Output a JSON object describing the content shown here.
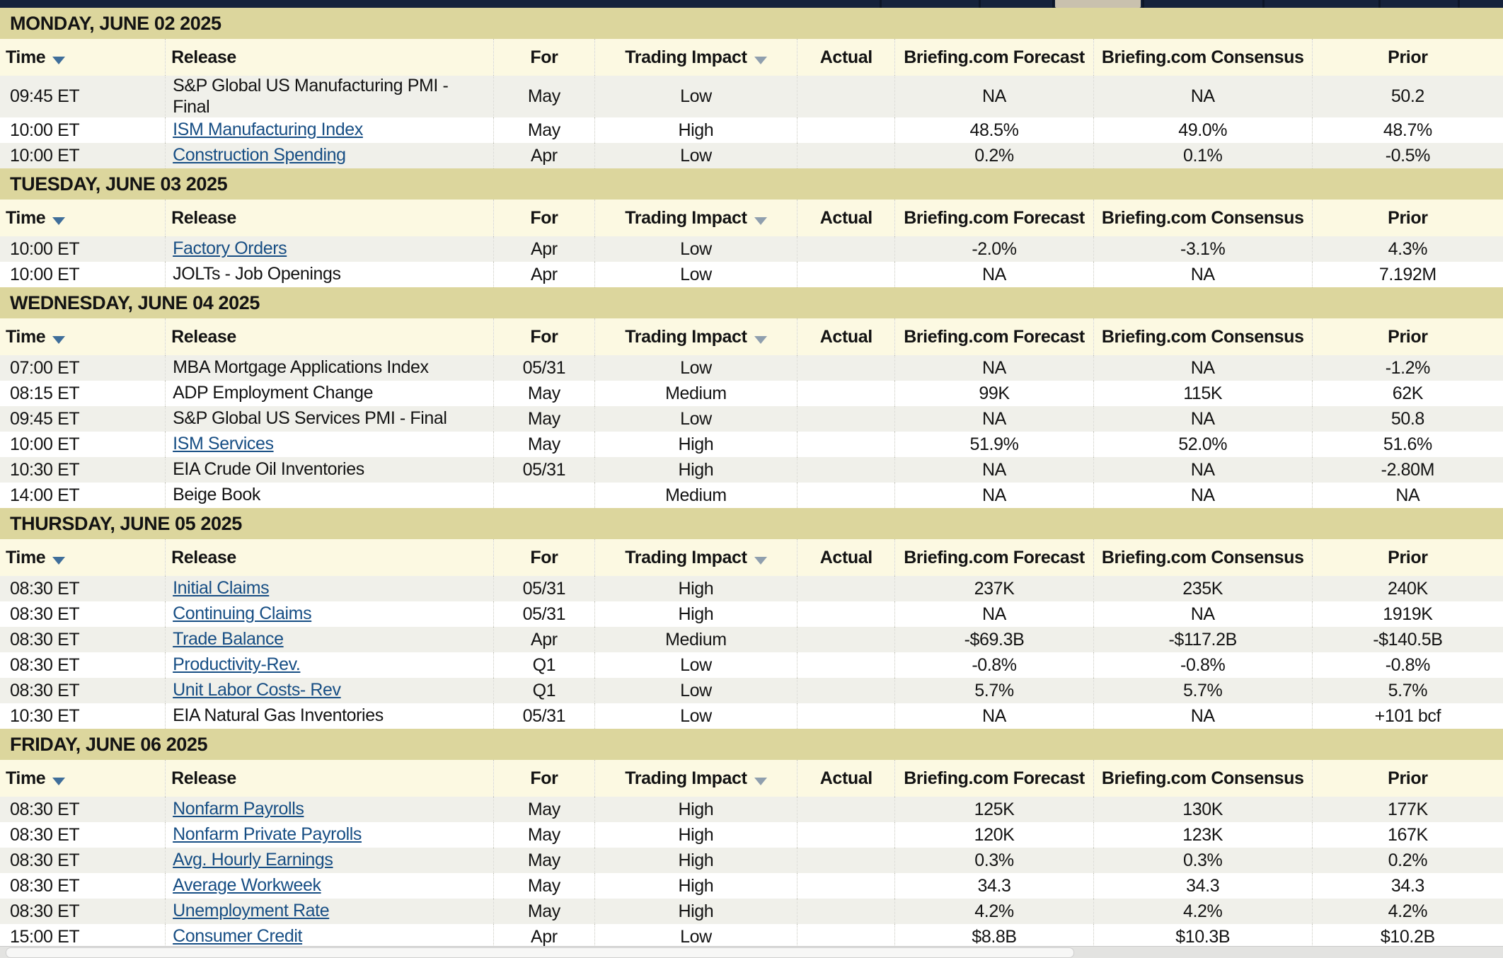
{
  "colors": {
    "topbar_bg": "#15223b",
    "topbar_divider": "#0c1628",
    "topbar_active_tab": "#c9c1ae",
    "day_header_bg": "#dcd69d",
    "column_header_bg": "#fcf9e2",
    "row_alt_bg": "#f0f0ea",
    "row_bg": "#ffffff",
    "text_color": "#131313",
    "link_color": "#174e84",
    "sort_arrow_time": "#3f6e9a",
    "sort_arrow_impact": "#8f9fae",
    "divider_dotted": "#c9c9c0",
    "scrollbar_track": "#e3e3e1",
    "scrollbar_thumb": "#f7f7f6"
  },
  "columns": {
    "time": "Time",
    "release": "Release",
    "for": "For",
    "impact": "Trading Impact",
    "actual": "Actual",
    "forecast": "Briefing.com Forecast",
    "consensus": "Briefing.com Consensus",
    "prior": "Prior"
  },
  "days": [
    {
      "title": "MONDAY, JUNE 02 2025",
      "rows": [
        {
          "time": "09:45 ET",
          "release": "S&P Global US Manufacturing PMI - Final",
          "is_link": false,
          "for": "May",
          "impact": "Low",
          "actual": "",
          "forecast": "NA",
          "consensus": "NA",
          "prior": "50.2"
        },
        {
          "time": "10:00 ET",
          "release": "ISM Manufacturing Index",
          "is_link": true,
          "for": "May",
          "impact": "High",
          "actual": "",
          "forecast": "48.5%",
          "consensus": "49.0%",
          "prior": "48.7%"
        },
        {
          "time": "10:00 ET",
          "release": "Construction Spending",
          "is_link": true,
          "for": "Apr",
          "impact": "Low",
          "actual": "",
          "forecast": "0.2%",
          "consensus": "0.1%",
          "prior": "-0.5%"
        }
      ]
    },
    {
      "title": "TUESDAY, JUNE 03 2025",
      "rows": [
        {
          "time": "10:00 ET",
          "release": "Factory Orders",
          "is_link": true,
          "for": "Apr",
          "impact": "Low",
          "actual": "",
          "forecast": "-2.0%",
          "consensus": "-3.1%",
          "prior": "4.3%"
        },
        {
          "time": "10:00 ET",
          "release": "JOLTs - Job Openings",
          "is_link": false,
          "for": "Apr",
          "impact": "Low",
          "actual": "",
          "forecast": "NA",
          "consensus": "NA",
          "prior": "7.192M"
        }
      ]
    },
    {
      "title": "WEDNESDAY, JUNE 04 2025",
      "rows": [
        {
          "time": "07:00 ET",
          "release": "MBA Mortgage Applications Index",
          "is_link": false,
          "for": "05/31",
          "impact": "Low",
          "actual": "",
          "forecast": "NA",
          "consensus": "NA",
          "prior": "-1.2%"
        },
        {
          "time": "08:15 ET",
          "release": "ADP Employment Change",
          "is_link": false,
          "for": "May",
          "impact": "Medium",
          "actual": "",
          "forecast": "99K",
          "consensus": "115K",
          "prior": "62K"
        },
        {
          "time": "09:45 ET",
          "release": "S&P Global US Services PMI - Final",
          "is_link": false,
          "for": "May",
          "impact": "Low",
          "actual": "",
          "forecast": "NA",
          "consensus": "NA",
          "prior": "50.8"
        },
        {
          "time": "10:00 ET",
          "release": "ISM Services",
          "is_link": true,
          "for": "May",
          "impact": "High",
          "actual": "",
          "forecast": "51.9%",
          "consensus": "52.0%",
          "prior": "51.6%"
        },
        {
          "time": "10:30 ET",
          "release": "EIA Crude Oil Inventories",
          "is_link": false,
          "for": "05/31",
          "impact": "High",
          "actual": "",
          "forecast": "NA",
          "consensus": "NA",
          "prior": "-2.80M"
        },
        {
          "time": "14:00 ET",
          "release": "Beige Book",
          "is_link": false,
          "for": "",
          "impact": "Medium",
          "actual": "",
          "forecast": "NA",
          "consensus": "NA",
          "prior": "NA"
        }
      ]
    },
    {
      "title": "THURSDAY, JUNE 05 2025",
      "rows": [
        {
          "time": "08:30 ET",
          "release": "Initial Claims",
          "is_link": true,
          "for": "05/31",
          "impact": "High",
          "actual": "",
          "forecast": "237K",
          "consensus": "235K",
          "prior": "240K"
        },
        {
          "time": "08:30 ET",
          "release": "Continuing Claims",
          "is_link": true,
          "for": "05/31",
          "impact": "High",
          "actual": "",
          "forecast": "NA",
          "consensus": "NA",
          "prior": "1919K"
        },
        {
          "time": "08:30 ET",
          "release": "Trade Balance",
          "is_link": true,
          "for": "Apr",
          "impact": "Medium",
          "actual": "",
          "forecast": "-$69.3B",
          "consensus": "-$117.2B",
          "prior": "-$140.5B"
        },
        {
          "time": "08:30 ET",
          "release": "Productivity-Rev.",
          "is_link": true,
          "for": "Q1",
          "impact": "Low",
          "actual": "",
          "forecast": "-0.8%",
          "consensus": "-0.8%",
          "prior": "-0.8%"
        },
        {
          "time": "08:30 ET",
          "release": "Unit Labor Costs- Rev",
          "is_link": true,
          "for": "Q1",
          "impact": "Low",
          "actual": "",
          "forecast": "5.7%",
          "consensus": "5.7%",
          "prior": "5.7%"
        },
        {
          "time": "10:30 ET",
          "release": "EIA Natural Gas Inventories",
          "is_link": false,
          "for": "05/31",
          "impact": "Low",
          "actual": "",
          "forecast": "NA",
          "consensus": "NA",
          "prior": "+101 bcf"
        }
      ]
    },
    {
      "title": "FRIDAY, JUNE 06 2025",
      "rows": [
        {
          "time": "08:30 ET",
          "release": "Nonfarm Payrolls",
          "is_link": true,
          "for": "May",
          "impact": "High",
          "actual": "",
          "forecast": "125K",
          "consensus": "130K",
          "prior": "177K"
        },
        {
          "time": "08:30 ET",
          "release": "Nonfarm Private Payrolls",
          "is_link": true,
          "for": "May",
          "impact": "High",
          "actual": "",
          "forecast": "120K",
          "consensus": "123K",
          "prior": "167K"
        },
        {
          "time": "08:30 ET",
          "release": "Avg. Hourly Earnings",
          "is_link": true,
          "for": "May",
          "impact": "High",
          "actual": "",
          "forecast": "0.3%",
          "consensus": "0.3%",
          "prior": "0.2%"
        },
        {
          "time": "08:30 ET",
          "release": "Average Workweek",
          "is_link": true,
          "for": "May",
          "impact": "High",
          "actual": "",
          "forecast": "34.3",
          "consensus": "34.3",
          "prior": "34.3"
        },
        {
          "time": "08:30 ET",
          "release": "Unemployment Rate",
          "is_link": true,
          "for": "May",
          "impact": "High",
          "actual": "",
          "forecast": "4.2%",
          "consensus": "4.2%",
          "prior": "4.2%"
        },
        {
          "time": "15:00 ET",
          "release": "Consumer Credit",
          "is_link": true,
          "for": "Apr",
          "impact": "Low",
          "actual": "",
          "forecast": "$8.8B",
          "consensus": "$10.3B",
          "prior": "$10.2B"
        }
      ]
    }
  ]
}
